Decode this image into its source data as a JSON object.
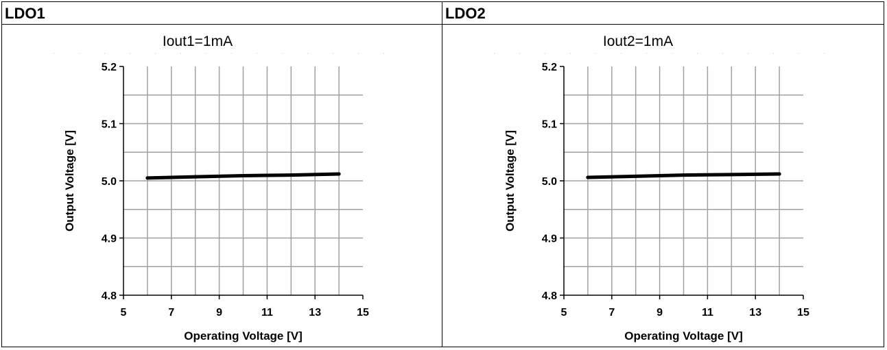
{
  "panels": [
    {
      "title": "LDO1",
      "chart_data": {
        "type": "line",
        "title": "Iout1=1mA",
        "xlabel": "Operating Voltage [V]",
        "ylabel": "Output Voltage [V]",
        "xlim": [
          5,
          15
        ],
        "ylim": [
          4.8,
          5.2
        ],
        "xticks": [
          5,
          7,
          9,
          11,
          13,
          15
        ],
        "yticks": [
          "4.8",
          "4.9",
          "5.0",
          "5.1",
          "5.2"
        ],
        "grid": true,
        "x": [
          6,
          8,
          10,
          12,
          14
        ],
        "series": [
          {
            "values": [
              5.005,
              5.007,
              5.009,
              5.01,
              5.012
            ]
          }
        ],
        "line_color": "#000000",
        "grid_color": "#a0a0a0"
      }
    },
    {
      "title": "LDO2",
      "chart_data": {
        "type": "line",
        "title": "Iout2=1mA",
        "xlabel": "Operating Voltage [V]",
        "ylabel": "Output Voltage [V]",
        "xlim": [
          5,
          15
        ],
        "ylim": [
          4.8,
          5.2
        ],
        "xticks": [
          5,
          7,
          9,
          11,
          13,
          15
        ],
        "yticks": [
          "4.8",
          "4.9",
          "5.0",
          "5.1",
          "5.2"
        ],
        "grid": true,
        "x": [
          6,
          8,
          10,
          12,
          14
        ],
        "series": [
          {
            "values": [
              5.006,
              5.008,
              5.01,
              5.011,
              5.012
            ]
          }
        ],
        "line_color": "#000000",
        "grid_color": "#a0a0a0"
      }
    }
  ]
}
